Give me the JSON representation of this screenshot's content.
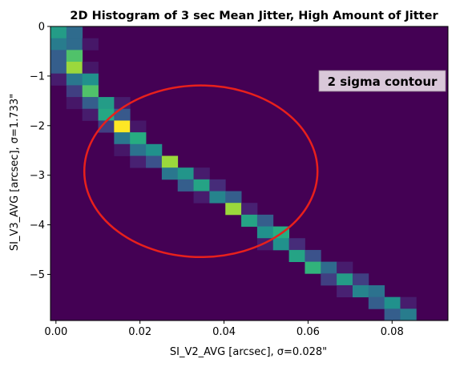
{
  "chart_data": {
    "type": "heatmap",
    "title": "2D Histogram of 3 sec Mean Jitter, High Amount of Jitter",
    "xlabel": "SI_V2_AVG [arcsec], σ=0.028\"",
    "ylabel": "SI_V3_AVG [arcsec], σ=1.733\"",
    "xlim": [
      -0.0013,
      0.0933
    ],
    "ylim": [
      -5.93,
      0.0
    ],
    "xticks": [
      0.0,
      0.02,
      0.04,
      0.06,
      0.08
    ],
    "xtick_labels": [
      "0.00",
      "0.02",
      "0.04",
      "0.06",
      "0.08"
    ],
    "yticks": [
      0,
      -1,
      -2,
      -3,
      -4,
      -5
    ],
    "ytick_labels": [
      "0",
      "−1",
      "−2",
      "−3",
      "−4",
      "−5"
    ],
    "colormap": "viridis",
    "background_color": "#440154",
    "bins": {
      "nx": 25,
      "ny": 25
    },
    "cells": [
      [
        0,
        0,
        0.55
      ],
      [
        1,
        0,
        0.35
      ],
      [
        0,
        1,
        0.42
      ],
      [
        1,
        1,
        0.35
      ],
      [
        2,
        1,
        0.08
      ],
      [
        0,
        2,
        0.3
      ],
      [
        1,
        2,
        0.72
      ],
      [
        0,
        3,
        0.3
      ],
      [
        1,
        3,
        0.85
      ],
      [
        2,
        3,
        0.08
      ],
      [
        0,
        4,
        0.1
      ],
      [
        1,
        4,
        0.4
      ],
      [
        2,
        4,
        0.5
      ],
      [
        1,
        5,
        0.2
      ],
      [
        2,
        5,
        0.72
      ],
      [
        1,
        6,
        0.08
      ],
      [
        2,
        6,
        0.3
      ],
      [
        3,
        6,
        0.55
      ],
      [
        4,
        6,
        0.1
      ],
      [
        2,
        7,
        0.1
      ],
      [
        3,
        7,
        0.6
      ],
      [
        4,
        7,
        0.28
      ],
      [
        3,
        8,
        0.2
      ],
      [
        4,
        8,
        1.0
      ],
      [
        5,
        8,
        0.08
      ],
      [
        4,
        9,
        0.4
      ],
      [
        5,
        9,
        0.62
      ],
      [
        4,
        10,
        0.08
      ],
      [
        5,
        10,
        0.38
      ],
      [
        6,
        10,
        0.5
      ],
      [
        5,
        11,
        0.12
      ],
      [
        6,
        11,
        0.25
      ],
      [
        7,
        11,
        0.85
      ],
      [
        7,
        12,
        0.4
      ],
      [
        8,
        12,
        0.52
      ],
      [
        9,
        12,
        0.1
      ],
      [
        8,
        13,
        0.3
      ],
      [
        9,
        13,
        0.58
      ],
      [
        10,
        13,
        0.15
      ],
      [
        9,
        14,
        0.1
      ],
      [
        10,
        14,
        0.45
      ],
      [
        11,
        14,
        0.3
      ],
      [
        11,
        15,
        0.85
      ],
      [
        12,
        15,
        0.12
      ],
      [
        12,
        16,
        0.58
      ],
      [
        13,
        16,
        0.3
      ],
      [
        13,
        17,
        0.5
      ],
      [
        14,
        17,
        0.62
      ],
      [
        13,
        18,
        0.1
      ],
      [
        14,
        18,
        0.5
      ],
      [
        15,
        18,
        0.15
      ],
      [
        15,
        19,
        0.58
      ],
      [
        16,
        19,
        0.25
      ],
      [
        16,
        20,
        0.65
      ],
      [
        17,
        20,
        0.35
      ],
      [
        18,
        20,
        0.1
      ],
      [
        17,
        21,
        0.2
      ],
      [
        18,
        21,
        0.55
      ],
      [
        19,
        21,
        0.2
      ],
      [
        18,
        22,
        0.12
      ],
      [
        19,
        22,
        0.45
      ],
      [
        20,
        22,
        0.38
      ],
      [
        20,
        23,
        0.3
      ],
      [
        21,
        23,
        0.5
      ],
      [
        22,
        23,
        0.1
      ],
      [
        21,
        24,
        0.3
      ],
      [
        22,
        24,
        0.42
      ]
    ],
    "annotations": [
      {
        "type": "ellipse",
        "label": "2 sigma contour",
        "center": [
          0.0345,
          -2.92
        ],
        "width": 0.0555,
        "height": 3.46,
        "color": "#e8201c",
        "label_box_color": "#d9c8d9"
      }
    ],
    "grid": false
  }
}
